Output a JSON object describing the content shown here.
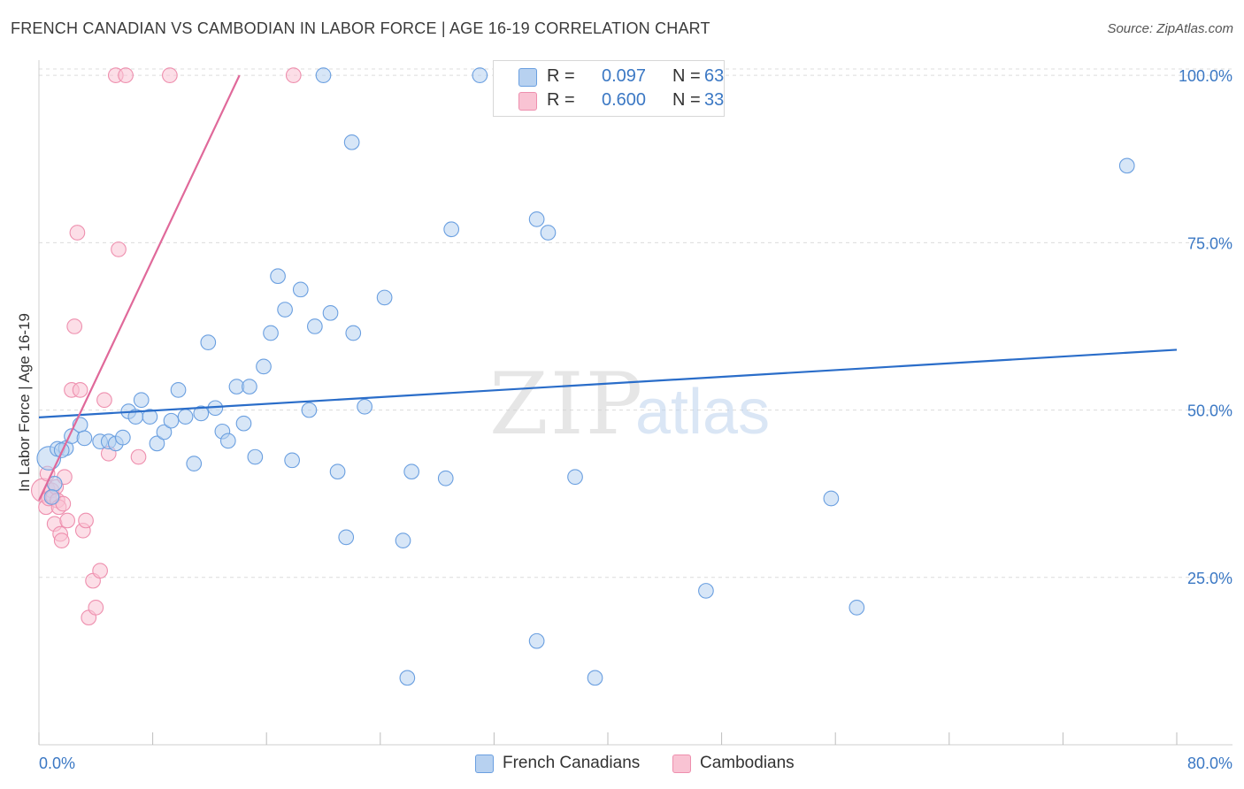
{
  "title": "FRENCH CANADIAN VS CAMBODIAN IN LABOR FORCE | AGE 16-19 CORRELATION CHART",
  "source": "Source: ZipAtlas.com",
  "watermark": {
    "zip": "ZIP",
    "atlas": "atlas"
  },
  "legend": {
    "r_label": "R =",
    "n_label": "N =",
    "series": [
      {
        "name": "French Canadians",
        "r": "0.097",
        "n": "63",
        "fill": "#b7d1f0",
        "stroke": "#6a9fe0"
      },
      {
        "name": "Cambodians",
        "r": "0.600",
        "n": "33",
        "fill": "#f9c3d3",
        "stroke": "#ee8fae"
      }
    ]
  },
  "colors": {
    "blue_line": "#2a6dc9",
    "pink_line": "#e0699a",
    "tick_text": "#3b78c4",
    "grid": "#dcdcdc"
  },
  "chart_data": {
    "type": "scatter",
    "title": "FRENCH CANADIAN VS CAMBODIAN IN LABOR FORCE | AGE 16-19 CORRELATION CHART",
    "xlabel": "",
    "ylabel": "In Labor Force | Age 16-19",
    "xlim": [
      0,
      80
    ],
    "ylim": [
      0,
      102
    ],
    "x_tick_labels": [
      "0.0%",
      "80.0%"
    ],
    "y_ticks": [
      25,
      50,
      75,
      100
    ],
    "y_tick_labels": [
      "25.0%",
      "50.0%",
      "75.0%",
      "100.0%"
    ],
    "series": [
      {
        "name": "French Canadians",
        "trend": {
          "x": [
            0,
            80
          ],
          "y": [
            48.9,
            59.0
          ]
        },
        "points": [
          [
            0.7,
            42.8,
            1.6
          ],
          [
            1.1,
            39.0,
            1
          ],
          [
            1.3,
            44.2,
            1
          ],
          [
            1.9,
            44.3,
            1
          ],
          [
            2.3,
            46.1,
            1
          ],
          [
            2.9,
            47.8,
            1
          ],
          [
            3.2,
            45.8,
            1
          ],
          [
            4.3,
            45.3,
            1
          ],
          [
            4.9,
            45.3,
            1
          ],
          [
            5.4,
            45.0,
            1
          ],
          [
            5.9,
            45.9,
            1
          ],
          [
            6.3,
            49.8,
            1
          ],
          [
            6.8,
            49.0,
            1
          ],
          [
            7.2,
            51.5,
            1
          ],
          [
            7.8,
            49.0,
            1
          ],
          [
            8.3,
            45.0,
            1
          ],
          [
            8.8,
            46.7,
            1
          ],
          [
            9.3,
            48.4,
            1
          ],
          [
            9.8,
            53.0,
            1
          ],
          [
            10.3,
            49.0,
            1
          ],
          [
            10.9,
            42.0,
            1
          ],
          [
            11.4,
            49.5,
            1
          ],
          [
            11.9,
            60.1,
            1
          ],
          [
            12.4,
            50.3,
            1
          ],
          [
            12.9,
            46.8,
            1
          ],
          [
            13.3,
            45.4,
            1
          ],
          [
            13.9,
            53.5,
            1
          ],
          [
            14.4,
            48.0,
            1
          ],
          [
            14.8,
            53.5,
            1
          ],
          [
            15.2,
            43.0,
            1
          ],
          [
            15.8,
            56.5,
            1
          ],
          [
            16.3,
            61.5,
            1
          ],
          [
            16.8,
            70.0,
            1
          ],
          [
            17.3,
            65.0,
            1
          ],
          [
            17.8,
            42.5,
            1
          ],
          [
            18.4,
            68.0,
            1
          ],
          [
            19.0,
            50.0,
            1
          ],
          [
            19.4,
            62.5,
            1
          ],
          [
            20.0,
            100.0,
            1
          ],
          [
            20.5,
            64.5,
            1
          ],
          [
            21.0,
            40.8,
            1
          ],
          [
            21.6,
            31.0,
            1
          ],
          [
            22.1,
            61.5,
            1
          ],
          [
            22.0,
            90.0,
            1
          ],
          [
            22.9,
            50.5,
            1
          ],
          [
            24.3,
            66.8,
            1
          ],
          [
            25.6,
            30.5,
            1
          ],
          [
            25.9,
            10.0,
            1
          ],
          [
            26.2,
            40.8,
            1
          ],
          [
            28.6,
            39.8,
            1
          ],
          [
            29.0,
            77.0,
            1
          ],
          [
            31.0,
            100.0,
            1
          ],
          [
            35.0,
            15.5,
            1
          ],
          [
            35.0,
            78.5,
            1
          ],
          [
            35.8,
            76.5,
            1
          ],
          [
            37.7,
            40.0,
            1
          ],
          [
            39.1,
            10.0,
            1
          ],
          [
            46.9,
            23.0,
            1
          ],
          [
            55.7,
            36.8,
            1
          ],
          [
            57.5,
            20.5,
            1
          ],
          [
            76.5,
            86.5,
            1
          ],
          [
            0.9,
            37.0,
            1
          ],
          [
            1.6,
            44.0,
            1
          ]
        ]
      },
      {
        "name": "Cambodians",
        "trend": {
          "x": [
            0,
            14.1
          ],
          "y": [
            36.5,
            100.0
          ]
        },
        "points": [
          [
            0.3,
            38.0,
            1.6
          ],
          [
            0.5,
            35.5,
            1
          ],
          [
            0.6,
            40.5,
            1
          ],
          [
            0.7,
            36.8,
            1
          ],
          [
            0.9,
            38.0,
            1
          ],
          [
            1.0,
            37.0,
            1
          ],
          [
            1.1,
            33.0,
            1
          ],
          [
            1.2,
            38.5,
            1
          ],
          [
            1.3,
            36.5,
            1
          ],
          [
            1.4,
            35.5,
            1
          ],
          [
            1.5,
            31.5,
            1
          ],
          [
            1.6,
            30.5,
            1
          ],
          [
            1.8,
            40.0,
            1
          ],
          [
            2.0,
            33.5,
            1
          ],
          [
            2.3,
            53.0,
            1
          ],
          [
            2.5,
            62.5,
            1
          ],
          [
            2.7,
            76.5,
            1
          ],
          [
            2.9,
            53.0,
            1
          ],
          [
            3.1,
            32.0,
            1
          ],
          [
            3.3,
            33.5,
            1
          ],
          [
            3.5,
            19.0,
            1
          ],
          [
            3.8,
            24.5,
            1
          ],
          [
            4.0,
            20.5,
            1
          ],
          [
            4.3,
            26.0,
            1
          ],
          [
            4.6,
            51.5,
            1
          ],
          [
            4.9,
            43.5,
            1
          ],
          [
            5.4,
            100.0,
            1
          ],
          [
            5.6,
            74.0,
            1
          ],
          [
            6.1,
            100.0,
            1
          ],
          [
            7.0,
            43.0,
            1
          ],
          [
            9.2,
            100.0,
            1
          ],
          [
            17.9,
            100.0,
            1
          ],
          [
            1.7,
            36.0,
            1
          ]
        ]
      }
    ]
  }
}
